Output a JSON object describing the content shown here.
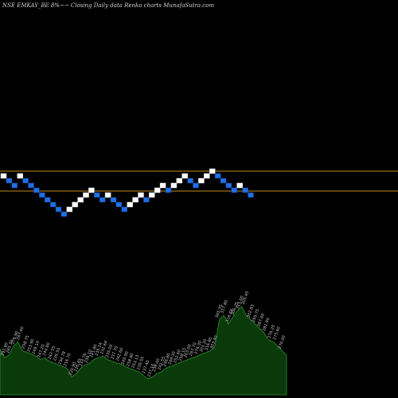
{
  "header": {
    "symbol": "NSE EMKAY_BE 8%~~ Closing Daily data  Renko charts MunafaSutra.com"
  },
  "colors": {
    "background": "#000000",
    "up_brick": "#ffffff",
    "down_brick": "#1e6fe8",
    "brick_outline": "#1a3a7a",
    "level_line": "#c08a1e",
    "volume_fill": "#0a3a0a",
    "volume_stroke": "#2f8f2f",
    "label": "#c8c8c8"
  },
  "chart_data": {
    "type": "renko",
    "bricks": [
      {
        "dir": "up",
        "level": 0
      },
      {
        "dir": "down",
        "level": -1
      },
      {
        "dir": "down",
        "level": -2
      },
      {
        "dir": "up",
        "level": 0
      },
      {
        "dir": "down",
        "level": -1
      },
      {
        "dir": "down",
        "level": -2
      },
      {
        "dir": "down",
        "level": -3
      },
      {
        "dir": "down",
        "level": -4
      },
      {
        "dir": "down",
        "level": -5
      },
      {
        "dir": "down",
        "level": -6
      },
      {
        "dir": "down",
        "level": -7
      },
      {
        "dir": "down",
        "level": -8
      },
      {
        "dir": "up",
        "level": -7
      },
      {
        "dir": "up",
        "level": -6
      },
      {
        "dir": "up",
        "level": -5
      },
      {
        "dir": "up",
        "level": -4
      },
      {
        "dir": "up",
        "level": -3
      },
      {
        "dir": "down",
        "level": -4
      },
      {
        "dir": "down",
        "level": -5
      },
      {
        "dir": "up",
        "level": -4
      },
      {
        "dir": "down",
        "level": -5
      },
      {
        "dir": "down",
        "level": -6
      },
      {
        "dir": "down",
        "level": -7
      },
      {
        "dir": "up",
        "level": -6
      },
      {
        "dir": "up",
        "level": -5
      },
      {
        "dir": "up",
        "level": -4
      },
      {
        "dir": "down",
        "level": -5
      },
      {
        "dir": "up",
        "level": -4
      },
      {
        "dir": "up",
        "level": -3
      },
      {
        "dir": "up",
        "level": -2
      },
      {
        "dir": "down",
        "level": -3
      },
      {
        "dir": "up",
        "level": -2
      },
      {
        "dir": "up",
        "level": -1
      },
      {
        "dir": "up",
        "level": 0
      },
      {
        "dir": "down",
        "level": -1
      },
      {
        "dir": "down",
        "level": -2
      },
      {
        "dir": "up",
        "level": -1
      },
      {
        "dir": "up",
        "level": 0
      },
      {
        "dir": "up",
        "level": 1
      },
      {
        "dir": "down",
        "level": 0
      },
      {
        "dir": "down",
        "level": -1
      },
      {
        "dir": "down",
        "level": -2
      },
      {
        "dir": "down",
        "level": -3
      },
      {
        "dir": "up",
        "level": -2
      },
      {
        "dir": "down",
        "level": -3
      },
      {
        "dir": "down",
        "level": -4
      }
    ],
    "levels": [
      1,
      -3
    ],
    "volume_profile": [
      0.52,
      0.42,
      0.45,
      0.55,
      0.6,
      0.5,
      0.48,
      0.46,
      0.44,
      0.4,
      0.42,
      0.38,
      0.36,
      0.34,
      0.32,
      0.3,
      0.2,
      0.24,
      0.3,
      0.34,
      0.36,
      0.4,
      0.42,
      0.44,
      0.4,
      0.38,
      0.36,
      0.35,
      0.32,
      0.3,
      0.28,
      0.26,
      0.22,
      0.18,
      0.2,
      0.24,
      0.26,
      0.3,
      0.32,
      0.34,
      0.36,
      0.38,
      0.4,
      0.42,
      0.44,
      0.46,
      0.48,
      0.5,
      0.55,
      0.85,
      0.9,
      0.8,
      0.88,
      0.95,
      1.0,
      0.9,
      0.85,
      0.8,
      0.75,
      0.7,
      0.62,
      0.6,
      0.55,
      0.5,
      0.45
    ],
    "volume_labels": [
      "292.60",
      "285.30",
      "276.90",
      "267.40",
      "258.75",
      "253.90",
      "249.10",
      "247.20",
      "244.80",
      "242.55",
      "239.55",
      "234.78",
      "216.70",
      "220.90",
      "226.45",
      "233.76",
      "239.10",
      "241.80",
      "235.14",
      "232.64",
      "235.00",
      "237.70",
      "242.60",
      "249.90",
      "258.80",
      "253.13",
      "239.55",
      "237.40",
      "237.10",
      "239.40",
      "242.55",
      "246.80",
      "249.30",
      "252.60",
      "258.15",
      "263.00",
      "267.70",
      "279.30",
      "301.20",
      "316.90",
      "303.40",
      "305.35",
      "317.80",
      "316.44",
      "306.25",
      "315.00",
      "305.45",
      "302.83",
      "295.75",
      "287.60",
      "281.90",
      "276.20",
      "275.60",
      "270.00"
    ]
  }
}
